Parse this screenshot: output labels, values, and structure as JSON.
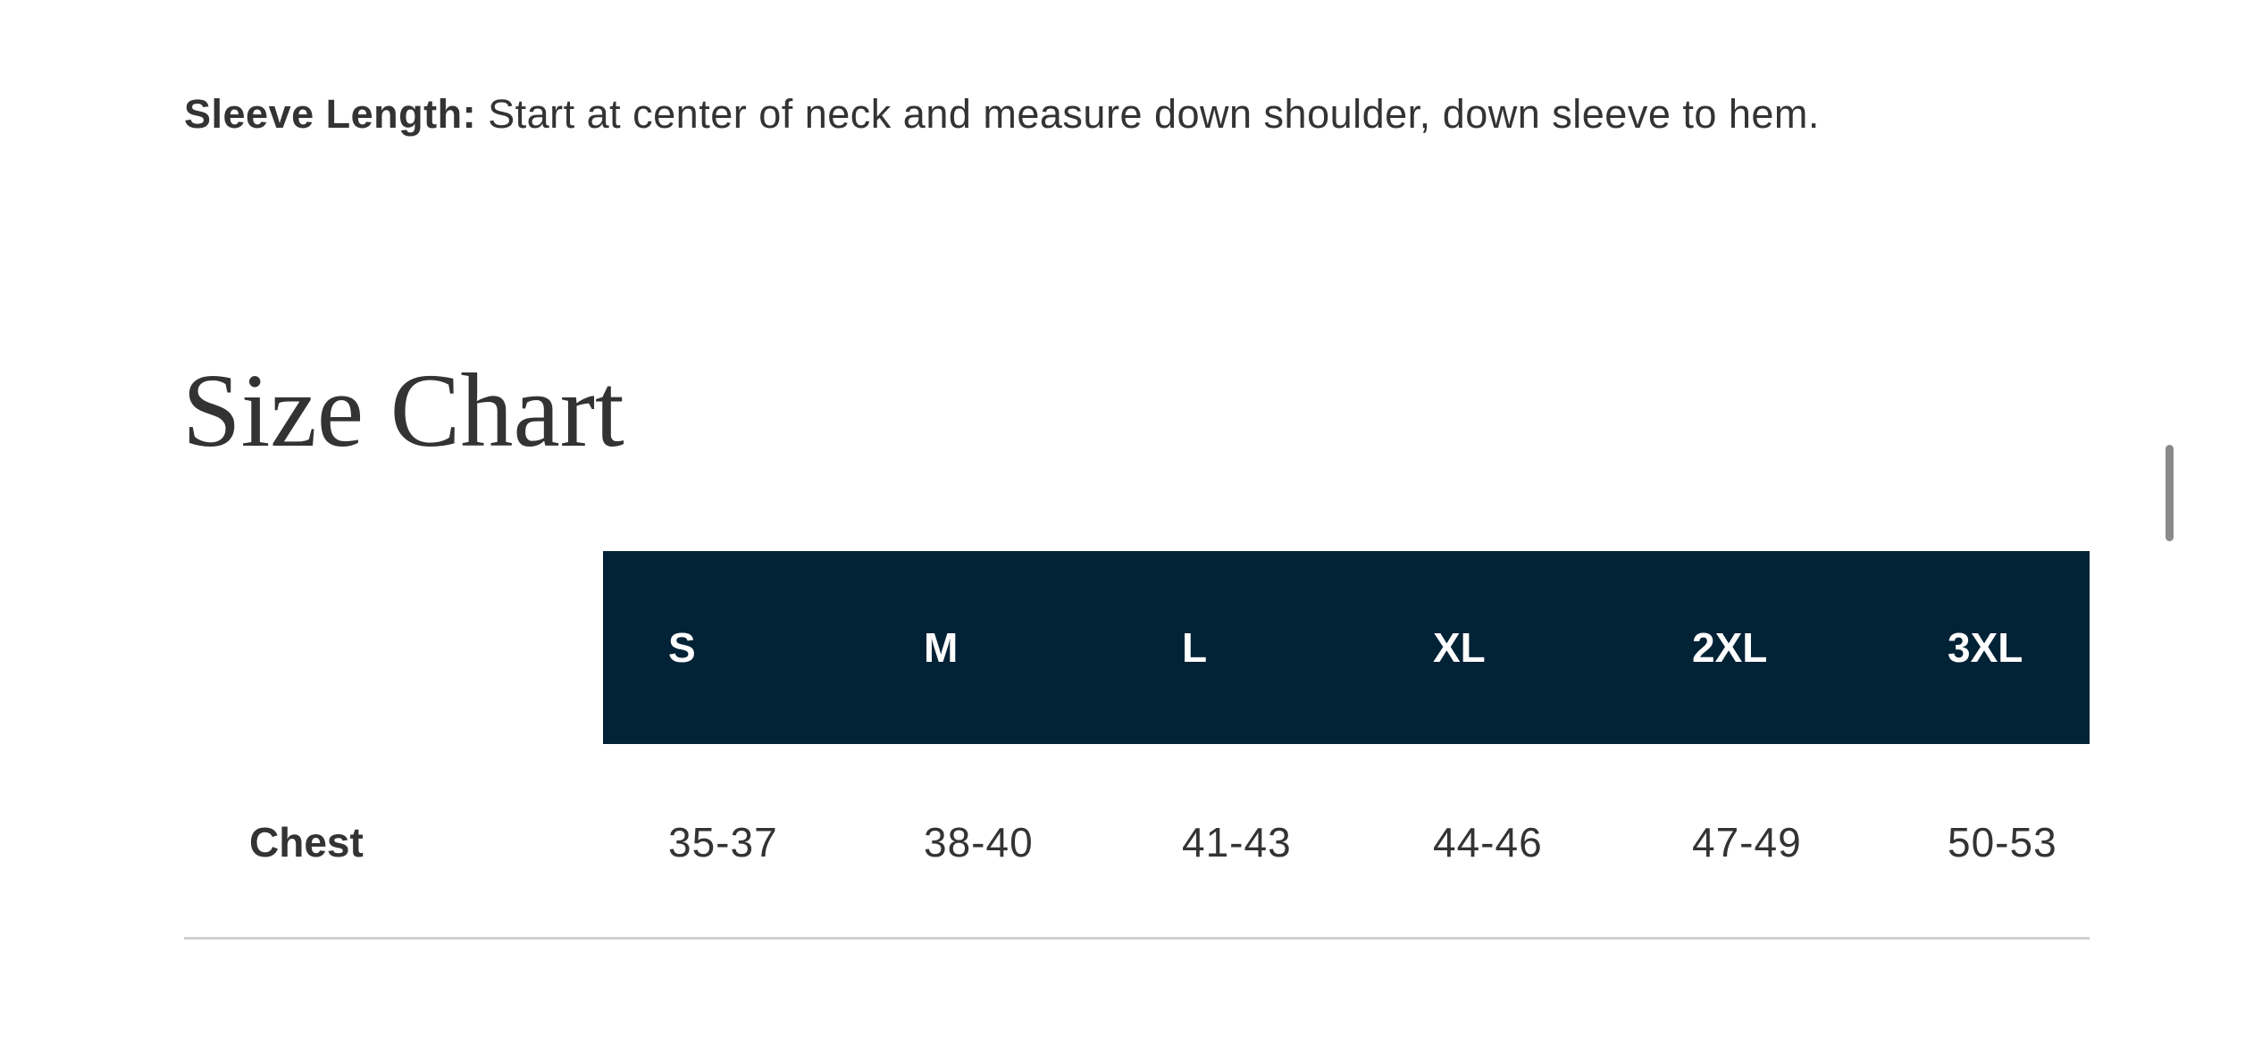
{
  "note": {
    "label": "Sleeve Length:",
    "text": " Start at center of neck and measure down shoulder, down sleeve to hem."
  },
  "title": "Size Chart",
  "table": {
    "headers": [
      "S",
      "M",
      "L",
      "XL",
      "2XL",
      "3XL"
    ],
    "rows": [
      {
        "label": "Chest",
        "values": [
          "35-37",
          "38-40",
          "41-43",
          "44-46",
          "47-49",
          "50-53"
        ]
      }
    ]
  },
  "colors": {
    "header_bg": "#022236",
    "text": "#333333"
  }
}
